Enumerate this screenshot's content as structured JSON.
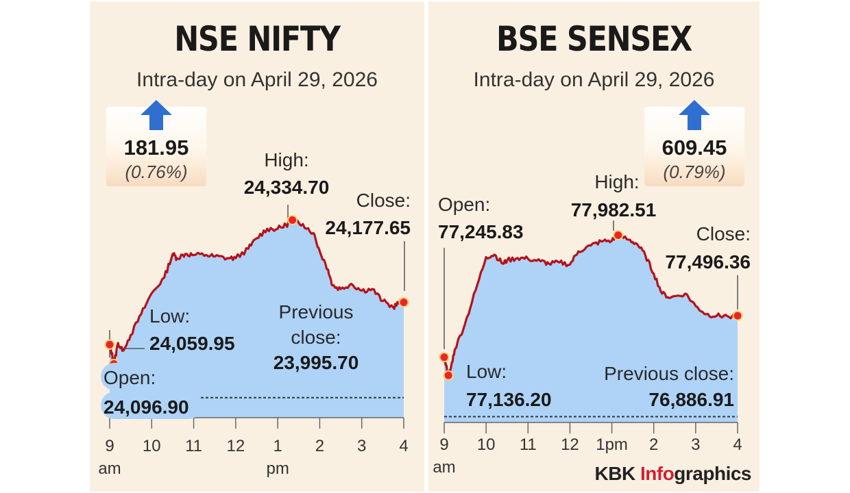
{
  "charts": {
    "nifty": {
      "title": "NSE NIFTY",
      "subtitle": "Intra-day on April 29, 2026",
      "change": "181.95",
      "change_pct": "(0.76%)",
      "labels": {
        "high": "High:",
        "high_value": "24,334.70",
        "close": "Close:",
        "close_value": "24,177.65",
        "low": "Low:",
        "low_value": "24,059.95",
        "prev_close_1": "Previous",
        "prev_close_2": "close:",
        "prev_close_value": "23,995.70",
        "open": "Open:",
        "open_value": "24,096.90"
      },
      "xticks": [
        {
          "t": 9.0,
          "label": "9",
          "sub": "am"
        },
        {
          "t": 10.0,
          "label": "10"
        },
        {
          "t": 11.0,
          "label": "11"
        },
        {
          "t": 12.0,
          "label": "12"
        },
        {
          "t": 13.0,
          "label": "1",
          "sub": "pm"
        },
        {
          "t": 14.0,
          "label": "2"
        },
        {
          "t": 15.0,
          "label": "3"
        },
        {
          "t": 16.0,
          "label": "4"
        }
      ]
    },
    "sensex": {
      "title": "BSE SENSEX",
      "subtitle": "Intra-day on April 29, 2026",
      "change": "609.45",
      "change_pct": "(0.79%)",
      "labels": {
        "high": "High:",
        "high_value": "77,982.51",
        "close": "Close:",
        "close_value": "77,496.36",
        "low": "Low:",
        "low_value": "77,136.20",
        "prev_close": "Previous close:",
        "prev_close_value": "76,886.91",
        "open": "Open:",
        "open_value": "77,245.83"
      },
      "xticks": [
        {
          "t": 9.0,
          "label": "9",
          "sub": "am"
        },
        {
          "t": 10.0,
          "label": "10"
        },
        {
          "t": 11.0,
          "label": "11"
        },
        {
          "t": 12.0,
          "label": "12"
        },
        {
          "t": 13.0,
          "label": "1pm"
        },
        {
          "t": 14.0,
          "label": "2"
        },
        {
          "t": 15.0,
          "label": "3"
        },
        {
          "t": 16.0,
          "label": "4"
        }
      ]
    }
  },
  "credit": {
    "kbk": "KBK ",
    "info": "Info",
    "graphics": "graphics"
  },
  "colors": {
    "line": "#b5121b",
    "area": "#aed3f7",
    "marker": "#e8252b",
    "background": "#faf0e2",
    "arrow": "#2f6fd0"
  },
  "chart_data": [
    {
      "type": "area",
      "title": "NSE NIFTY",
      "subtitle": "Intra-day on April 29, 2026",
      "x_unit": "hour of day",
      "ylim": [
        23960,
        24360
      ],
      "previous_close": 23995.7,
      "open": 24096.9,
      "low": 24059.95,
      "high": 24334.7,
      "close": 24177.65,
      "series": [
        {
          "x": [
            9.0,
            9.05,
            9.1,
            9.2,
            9.3,
            9.5,
            9.75,
            10.0,
            10.3,
            10.5,
            10.6,
            10.8,
            11.0,
            11.3,
            11.5,
            11.8,
            12.0,
            12.3,
            12.5,
            12.75,
            13.0,
            13.2,
            13.35,
            13.6,
            13.85,
            14.0,
            14.2,
            14.3,
            14.5,
            14.75,
            15.0,
            15.25,
            15.5,
            15.75,
            15.9,
            16.0
          ],
          "y": [
            24097,
            24080,
            24060,
            24100,
            24085,
            24115,
            24155,
            24195,
            24225,
            24270,
            24262,
            24270,
            24268,
            24268,
            24265,
            24262,
            24262,
            24280,
            24300,
            24318,
            24318,
            24325,
            24335,
            24327,
            24310,
            24275,
            24240,
            24210,
            24203,
            24213,
            24200,
            24203,
            24180,
            24168,
            24178,
            24177.65
          ]
        }
      ]
    },
    {
      "type": "area",
      "title": "BSE SENSEX",
      "subtitle": "Intra-day on April 29, 2026",
      "x_unit": "hour of day",
      "ylim": [
        76860,
        78030
      ],
      "previous_close": 76886.91,
      "open": 77245.83,
      "low": 77136.2,
      "high": 77982.51,
      "close": 77496.36,
      "series": [
        {
          "x": [
            9.0,
            9.05,
            9.1,
            9.15,
            9.25,
            9.5,
            9.75,
            10.0,
            10.2,
            10.4,
            10.5,
            10.75,
            11.0,
            11.3,
            11.5,
            11.75,
            12.0,
            12.2,
            12.5,
            12.75,
            13.0,
            13.15,
            13.4,
            13.6,
            13.8,
            14.0,
            14.2,
            14.4,
            14.75,
            15.0,
            15.25,
            15.5,
            15.75,
            16.0
          ],
          "y": [
            77246,
            77190,
            77136,
            77170,
            77290,
            77450,
            77650,
            77850,
            77865,
            77810,
            77830,
            77845,
            77840,
            77825,
            77810,
            77818,
            77805,
            77885,
            77920,
            77945,
            77950,
            77982.5,
            77955,
            77930,
            77860,
            77750,
            77630,
            77605,
            77630,
            77555,
            77505,
            77495,
            77495,
            77496.36
          ]
        }
      ]
    }
  ]
}
